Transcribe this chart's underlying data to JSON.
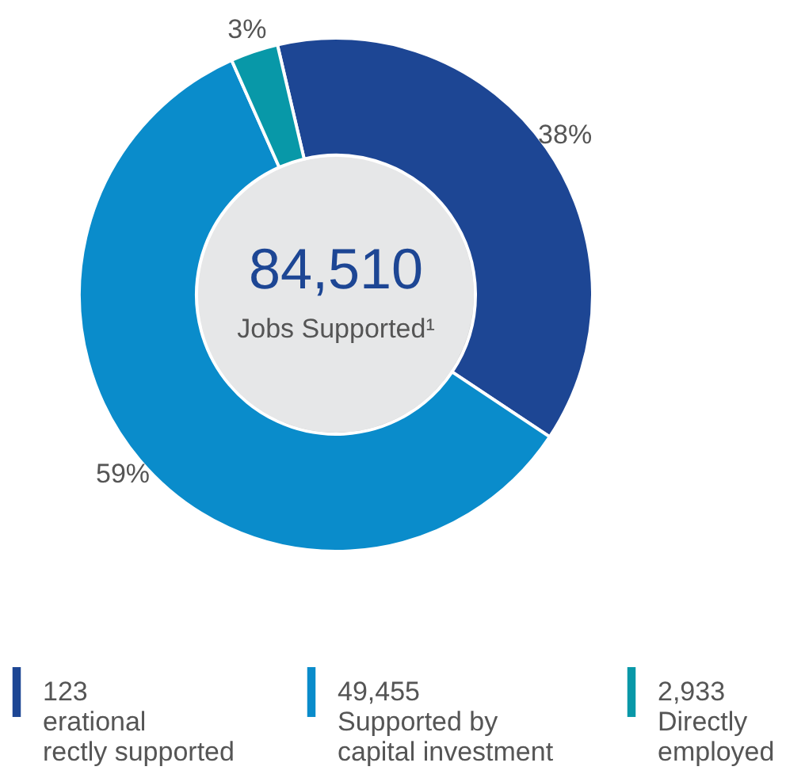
{
  "chart_data": {
    "type": "donut",
    "categories": [
      "123\nerational\nrectly supported",
      "49,455\nSupported by\ncapital investment",
      "2,933\nDirectly\nemployed"
    ],
    "values": [
      38,
      59,
      3
    ],
    "colors": [
      "#1d4694",
      "#0a8ccb",
      "#0898a8"
    ],
    "value_labels": [
      "38%",
      "59%",
      "3%"
    ],
    "annotations": [
      "84,510",
      "Jobs Supported¹"
    ],
    "legend": "bottom"
  }
}
